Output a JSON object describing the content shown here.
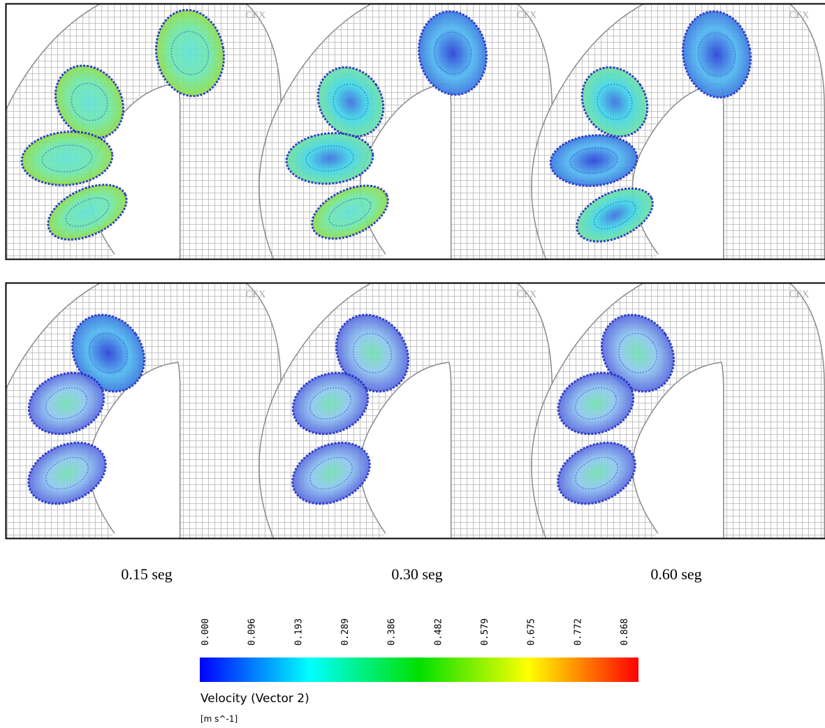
{
  "watermark": "CFX",
  "time_labels": [
    "0.15 seg",
    "0.30 seg",
    "0.60 seg"
  ],
  "legend": {
    "ticks": [
      "0.000",
      "0.096",
      "0.193",
      "0.289",
      "0.386",
      "0.482",
      "0.579",
      "0.675",
      "0.772",
      "0.868"
    ],
    "title": "Velocity (Vector 2)",
    "units": "[m s^-1]"
  }
}
